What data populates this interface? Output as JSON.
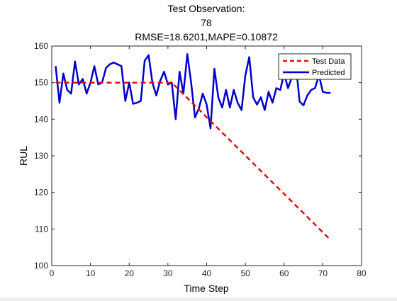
{
  "chart_data": {
    "type": "line",
    "title_lines": [
      "Test Observation:",
      "78",
      "RMSE=18.6201,MAPE=0.10872"
    ],
    "xlabel": "Time Step",
    "ylabel": "RUL",
    "xlim": [
      0,
      80
    ],
    "ylim": [
      100,
      160
    ],
    "xticks": [
      0,
      10,
      20,
      30,
      40,
      50,
      60,
      70,
      80
    ],
    "yticks": [
      100,
      110,
      120,
      130,
      140,
      150,
      160
    ],
    "grid": false,
    "legend_position": "top-right",
    "series": [
      {
        "name": "Test Data",
        "color": "#dd1111",
        "style": "dashed",
        "x": [
          1,
          31,
          72
        ],
        "values": [
          150,
          150,
          107
        ]
      },
      {
        "name": "Predicted",
        "color": "#0000c8",
        "style": "solid",
        "x": [
          1,
          2,
          3,
          4,
          5,
          6,
          7,
          8,
          9,
          10,
          11,
          12,
          13,
          14,
          15,
          16,
          17,
          18,
          19,
          20,
          21,
          22,
          23,
          24,
          25,
          26,
          27,
          28,
          29,
          30,
          31,
          32,
          33,
          34,
          35,
          36,
          37,
          38,
          39,
          40,
          41,
          42,
          43,
          44,
          45,
          46,
          47,
          48,
          49,
          50,
          51,
          52,
          53,
          54,
          55,
          56,
          57,
          58,
          59,
          60,
          61,
          62,
          63,
          64,
          65,
          66,
          67,
          68,
          69,
          70,
          71,
          72
        ],
        "values": [
          154.5,
          144.5,
          152.5,
          148,
          147,
          155.8,
          149.5,
          151,
          147,
          150,
          154.5,
          149.5,
          150,
          154,
          155,
          155.5,
          155,
          154.5,
          145,
          150,
          144.2,
          144.5,
          145,
          156,
          157.5,
          150,
          146.5,
          150.5,
          153,
          149.5,
          150,
          140,
          153,
          147,
          157.8,
          150,
          140.5,
          143,
          147,
          144,
          137.5,
          153.8,
          146,
          143.2,
          148,
          143.2,
          148,
          144.5,
          142.5,
          152,
          157,
          146,
          144,
          146,
          142.5,
          147.5,
          144.5,
          148.5,
          148,
          152.5,
          148.5,
          151.5,
          155.5,
          144.8,
          143.8,
          146.5,
          148,
          148.5,
          152,
          147.5,
          147.2,
          147.2
        ]
      }
    ]
  }
}
